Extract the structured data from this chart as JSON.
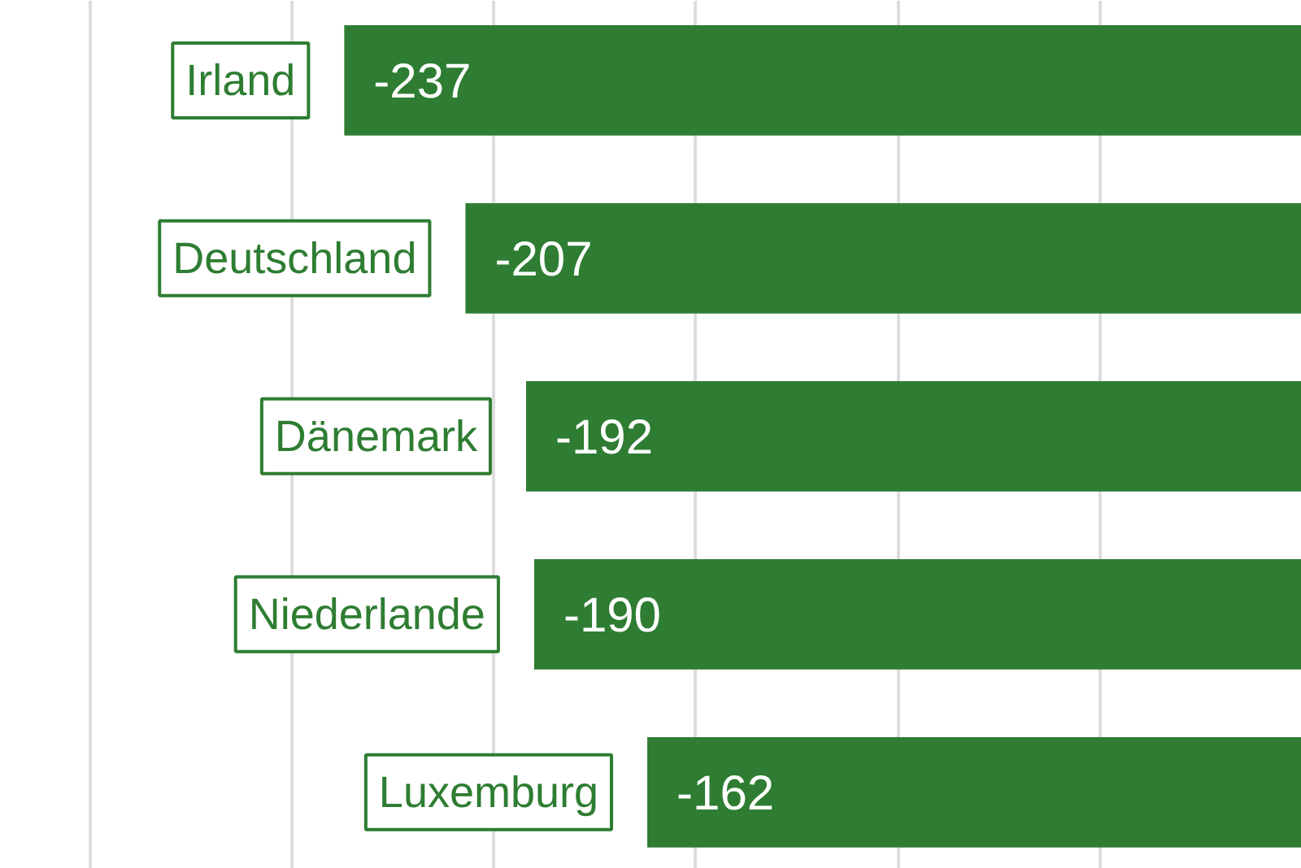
{
  "chart_data": {
    "type": "bar",
    "orientation": "horizontal",
    "categories": [
      "Irland",
      "Deutschland",
      "Dänemark",
      "Niederlande",
      "Luxemburg"
    ],
    "values": [
      -237,
      -207,
      -192,
      -190,
      -162
    ],
    "color": "#2e7d32",
    "xlim": [
      -322,
      0
    ],
    "xticks": [
      {
        "value": -300,
        "label": null
      },
      {
        "value": -250,
        "label": null
      },
      {
        "value": -200,
        "label": null
      },
      {
        "value": -150,
        "label": null
      },
      {
        "value": -100,
        "label": null
      },
      {
        "value": -50,
        "label": null
      }
    ],
    "tick_labels": false,
    "grid": "x",
    "data_labels": true
  }
}
